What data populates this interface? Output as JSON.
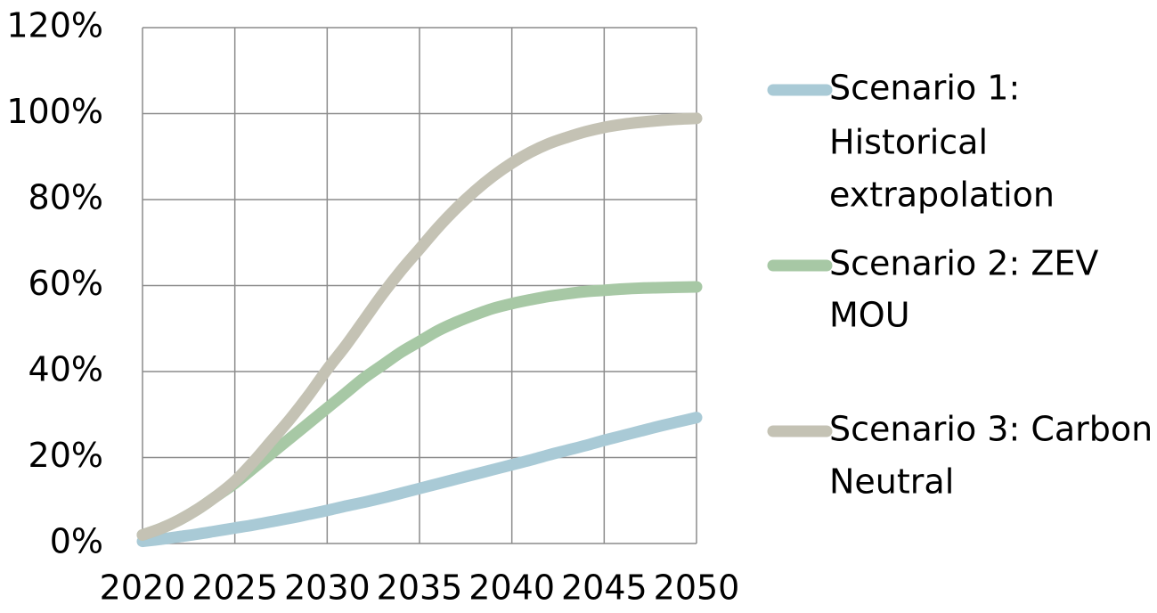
{
  "chart_data": {
    "type": "line",
    "x": [
      2020,
      2021,
      2022,
      2023,
      2024,
      2025,
      2026,
      2027,
      2028,
      2029,
      2030,
      2031,
      2032,
      2033,
      2034,
      2035,
      2036,
      2037,
      2038,
      2039,
      2040,
      2041,
      2042,
      2043,
      2044,
      2045,
      2046,
      2047,
      2048,
      2049,
      2050
    ],
    "xlim": [
      2020,
      2050
    ],
    "ylim": [
      0,
      1.2
    ],
    "y_tick_values": [
      0,
      0.2,
      0.4,
      0.6,
      0.8,
      1.0,
      1.2
    ],
    "y_tick_labels": [
      "0%",
      "20%",
      "40%",
      "60%",
      "80%",
      "100%",
      "120%"
    ],
    "x_tick_values": [
      2020,
      2025,
      2030,
      2035,
      2040,
      2045,
      2050
    ],
    "x_tick_labels": [
      "2020",
      "2025",
      "2030",
      "2035",
      "2040",
      "2045",
      "2050"
    ],
    "grid": true,
    "legend_position": "right",
    "series": [
      {
        "name": "Scenario 1: Historical extrapolation",
        "legend_lines": [
          "Scenario 1:",
          "Historical",
          "extrapolation"
        ],
        "color": "#a9cad6",
        "values": [
          0.005,
          0.01,
          0.016,
          0.022,
          0.029,
          0.036,
          0.043,
          0.051,
          0.059,
          0.068,
          0.077,
          0.087,
          0.096,
          0.106,
          0.117,
          0.128,
          0.139,
          0.15,
          0.161,
          0.172,
          0.183,
          0.194,
          0.206,
          0.217,
          0.228,
          0.24,
          0.251,
          0.262,
          0.273,
          0.283,
          0.293
        ]
      },
      {
        "name": "Scenario 2: ZEV MOU",
        "legend_lines": [
          "Scenario 2: ZEV",
          "MOU"
        ],
        "color": "#a7c8a5",
        "values": [
          0.02,
          0.035,
          0.055,
          0.08,
          0.11,
          0.14,
          0.175,
          0.21,
          0.245,
          0.28,
          0.315,
          0.35,
          0.385,
          0.415,
          0.445,
          0.47,
          0.495,
          0.515,
          0.532,
          0.547,
          0.558,
          0.567,
          0.575,
          0.581,
          0.586,
          0.589,
          0.592,
          0.594,
          0.595,
          0.596,
          0.597
        ]
      },
      {
        "name": "Scenario 3: Carbon Neutral",
        "legend_lines": [
          "Scenario 3: Carbon",
          "Neutral"
        ],
        "color": "#c4c2b4",
        "values": [
          0.02,
          0.035,
          0.055,
          0.08,
          0.11,
          0.145,
          0.19,
          0.24,
          0.29,
          0.345,
          0.405,
          0.46,
          0.52,
          0.58,
          0.635,
          0.685,
          0.735,
          0.78,
          0.82,
          0.855,
          0.885,
          0.91,
          0.93,
          0.945,
          0.958,
          0.968,
          0.975,
          0.98,
          0.984,
          0.987,
          0.989
        ]
      }
    ]
  }
}
